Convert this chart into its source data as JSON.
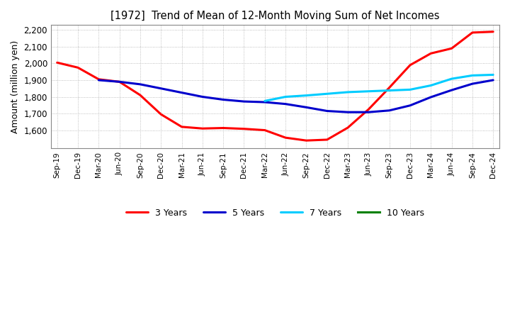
{
  "title": "[1972]  Trend of Mean of 12-Month Moving Sum of Net Incomes",
  "ylabel": "Amount (million yen)",
  "ylim": [
    1490,
    2230
  ],
  "yticks": [
    1600,
    1700,
    1800,
    1900,
    2000,
    2100,
    2200
  ],
  "x_labels": [
    "Sep-19",
    "Dec-19",
    "Mar-20",
    "Jun-20",
    "Sep-20",
    "Dec-20",
    "Mar-21",
    "Jun-21",
    "Sep-21",
    "Dec-21",
    "Mar-22",
    "Jun-22",
    "Sep-22",
    "Dec-22",
    "Mar-23",
    "Jun-23",
    "Sep-23",
    "Dec-23",
    "Mar-24",
    "Jun-24",
    "Sep-24",
    "Dec-24"
  ],
  "background_color": "#ffffff",
  "grid_color": "#999999",
  "series": {
    "3 Years": {
      "color": "#ff0000",
      "data_x": [
        0,
        1,
        2,
        3,
        4,
        5,
        6,
        7,
        8,
        9,
        10,
        11,
        12,
        13,
        14,
        15,
        16,
        17,
        18,
        19,
        20,
        21
      ],
      "data_y": [
        2005,
        1975,
        1905,
        1890,
        1810,
        1695,
        1620,
        1610,
        1613,
        1608,
        1600,
        1555,
        1538,
        1543,
        1615,
        1725,
        1855,
        1990,
        2060,
        2090,
        2185,
        2190
      ]
    },
    "5 Years": {
      "color": "#0000cc",
      "data_x": [
        2,
        3,
        4,
        5,
        6,
        7,
        8,
        9,
        10,
        11,
        12,
        13,
        14,
        15,
        16,
        17,
        18,
        19,
        20,
        21
      ],
      "data_y": [
        1900,
        1890,
        1875,
        1850,
        1825,
        1800,
        1783,
        1772,
        1768,
        1757,
        1737,
        1715,
        1708,
        1708,
        1718,
        1748,
        1798,
        1840,
        1878,
        1900
      ]
    },
    "7 Years": {
      "color": "#00ccff",
      "data_x": [
        10,
        11,
        12,
        13,
        14,
        15,
        16,
        17,
        18,
        19,
        20,
        21
      ],
      "data_y": [
        1775,
        1800,
        1808,
        1818,
        1828,
        1833,
        1838,
        1843,
        1868,
        1908,
        1928,
        1932
      ]
    },
    "10 Years": {
      "color": "#008000",
      "data_x": [],
      "data_y": []
    }
  },
  "legend_order": [
    "3 Years",
    "5 Years",
    "7 Years",
    "10 Years"
  ]
}
